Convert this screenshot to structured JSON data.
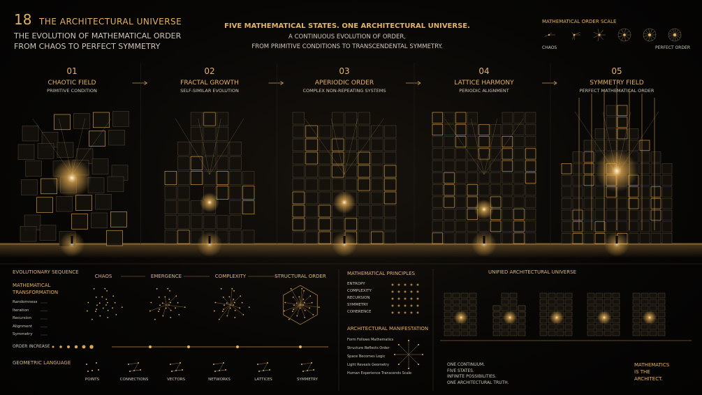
{
  "header": {
    "number": "18",
    "title": "THE ARCHITECTURAL UNIVERSE",
    "subtitle": [
      "THE EVOLUTION OF MATHEMATICAL ORDER",
      "FROM CHAOS TO PERFECT SYMMETRY"
    ]
  },
  "intro": {
    "headline": "FIVE MATHEMATICAL STATES. ONE ARCHITECTURAL UNIVERSE.",
    "lines": [
      "A CONTINUOUS EVOLUTION OF ORDER,",
      "FROM PRIMITIVE CONDITIONS TO TRANSCENDENTAL SYMMETRY."
    ]
  },
  "scale": {
    "title": "MATHEMATICAL ORDER SCALE",
    "low": "CHAOS",
    "high": "PERFECT ORDER"
  },
  "stages": [
    {
      "number": "01",
      "name": "CHAOTIC FIELD",
      "caption": "PRIMITIVE CONDITION"
    },
    {
      "number": "02",
      "name": "FRACTAL GROWTH",
      "caption": "SELF-SIMILAR EVOLUTION"
    },
    {
      "number": "03",
      "name": "APERIODIC ORDER",
      "caption": "COMPLEX NON-REPEATING SYSTEMS"
    },
    {
      "number": "04",
      "name": "LATTICE HARMONY",
      "caption": "PERIODIC ALIGNMENT"
    },
    {
      "number": "05",
      "name": "SYMMETRY FIELD",
      "caption": "PERFECT MATHEMATICAL ORDER"
    }
  ],
  "sequence": {
    "title": "EVOLUTIONARY SEQUENCE",
    "transformation_title": "MATHEMATICAL TRANSFORMATION",
    "transformations": [
      "Randomness",
      "Iteration",
      "Recursion",
      "Alignment",
      "Symmetry"
    ],
    "steps": [
      "CHAOS",
      "EMERGENCE",
      "COMPLEXITY",
      "STRUCTURAL ORDER"
    ],
    "order_label": "ORDER INCREASE"
  },
  "geometry": {
    "title": "GEOMETRIC LANGUAGE",
    "items": [
      "POINTS",
      "CONNECTIONS",
      "VECTORS",
      "NETWORKS",
      "LATTICES",
      "SYMMETRY"
    ]
  },
  "principles": {
    "title": "MATHEMATICAL PRINCIPLES",
    "items": [
      "ENTROPY",
      "COMPLEXITY",
      "RECURSION",
      "SYMMETRY",
      "COHERENCE"
    ]
  },
  "manifestation": {
    "title": "ARCHITECTURAL MANIFESTATION",
    "items": [
      "Form Follows Mathematics",
      "Structure Reflects Order",
      "Space Becomes Logic",
      "Light Reveals Geometry",
      "Human Experience Transcends Scale"
    ]
  },
  "unified": {
    "title": "UNIFIED ARCHITECTURAL UNIVERSE",
    "statement": [
      "ONE CONTINUUM.",
      "FIVE STATES.",
      "INFINITE POSSIBILITIES.",
      "ONE ARCHITECTURAL TRUTH."
    ],
    "closing": [
      "MATHEMATICS",
      "IS THE",
      "ARCHITECT."
    ]
  }
}
